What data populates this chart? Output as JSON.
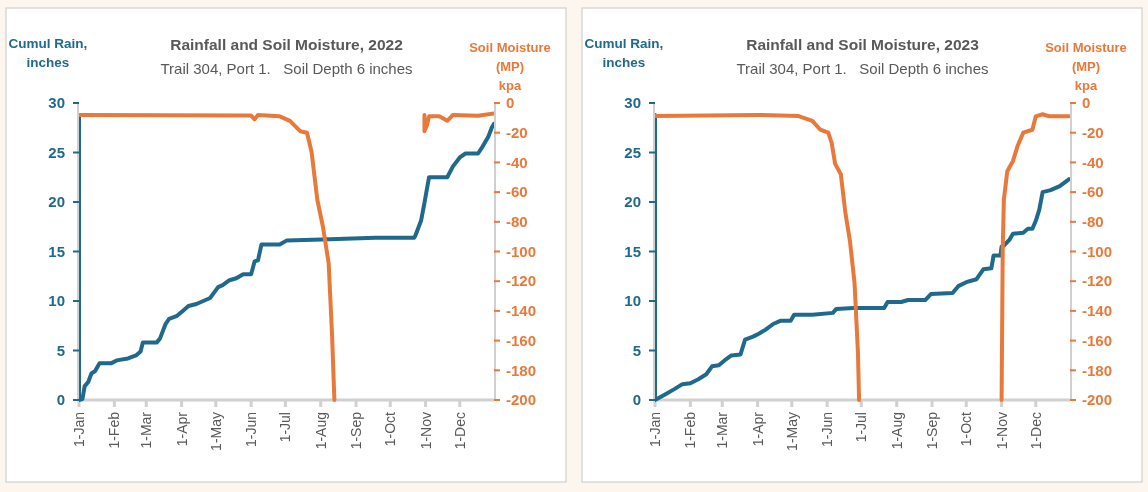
{
  "chart_data": [
    {
      "type": "line",
      "title": "Rainfall and Soil Moisture, 2022",
      "subtitle": "Trail 304, Port 1.   Soil Depth 6 inches",
      "ylabel": "Cumul Rain,\ninches",
      "y2label": "Soil Moisture\n(MP)\nkpa",
      "xlim": [
        "--01-01",
        "--12-31"
      ],
      "xticks": [
        {
          "value": "--01-01",
          "label": "1-Jan"
        },
        {
          "value": "--02-01",
          "label": "1-Feb"
        },
        {
          "value": "--03-01",
          "label": "1-Mar"
        },
        {
          "value": "--04-01",
          "label": "1-Apr"
        },
        {
          "value": "--05-01",
          "label": "1-May"
        },
        {
          "value": "--06-01",
          "label": "1-Jun"
        },
        {
          "value": "--07-01",
          "label": "1-Jul"
        },
        {
          "value": "--08-01",
          "label": "1-Aug"
        },
        {
          "value": "--09-01",
          "label": "1-Sep"
        },
        {
          "value": "--10-01",
          "label": "1-Oct"
        },
        {
          "value": "--11-01",
          "label": "1-Nov"
        },
        {
          "value": "--12-01",
          "label": "1-Dec"
        }
      ],
      "ylim": [
        0,
        30
      ],
      "yticks": [
        0,
        5,
        10,
        15,
        20,
        25,
        30
      ],
      "y2lim": [
        -200,
        0
      ],
      "y2ticks": [
        0,
        -20,
        -40,
        -60,
        -80,
        -100,
        -120,
        -140,
        -160,
        -180,
        -200
      ],
      "series": [
        {
          "color": "#1f6a8c",
          "x": [
            "--01-01",
            "--01-01",
            "--01-04",
            "--01-06",
            "--01-09",
            "--01-12",
            "--01-15",
            "--01-19",
            "--01-29",
            "--02-03",
            "--02-13",
            "--02-20",
            "--02-24",
            "--02-26",
            "--03-10",
            "--03-13",
            "--03-18",
            "--03-21",
            "--03-28",
            "--04-02",
            "--04-07",
            "--04-14",
            "--04-20",
            "--04-26",
            "--05-03",
            "--05-07",
            "--05-13",
            "--05-19",
            "--05-25",
            "--06-01",
            "--06-04",
            "--06-07",
            "--06-10",
            "--06-26",
            "--07-02",
            "--08-02",
            "--09-18",
            "--10-22",
            "--10-23",
            "--10-28",
            "--10-31",
            "--11-04",
            "--11-20",
            "--11-25",
            "--12-01",
            "--12-06",
            "--12-17",
            "--12-21",
            "--12-26",
            "--12-29",
            "--12-31"
          ],
          "values": [
            28.8,
            0,
            0.1,
            1.4,
            1.8,
            2.7,
            2.9,
            3.7,
            3.7,
            4.0,
            4.2,
            4.5,
            4.9,
            5.8,
            5.8,
            6.2,
            7.7,
            8.2,
            8.5,
            9.0,
            9.5,
            9.7,
            10.0,
            10.3,
            11.4,
            11.6,
            12.1,
            12.3,
            12.7,
            12.7,
            14.0,
            14.1,
            15.7,
            15.7,
            16.1,
            16.2,
            16.4,
            16.4,
            16.6,
            18.1,
            19.9,
            22.5,
            22.5,
            23.6,
            24.5,
            24.9,
            24.9,
            25.6,
            26.6,
            27.5,
            27.9
          ]
        },
        {
          "color": "#e8793a",
          "axis": "y2",
          "x": [
            "--01-01",
            "--06-01",
            "--06-04",
            "--06-07",
            "--06-26",
            "--07-05",
            "--07-14",
            "--07-20",
            "--07-24",
            "--07-29",
            "--08-03",
            "--08-08",
            "--08-11",
            "--08-13",
            "--08-14",
            "--10-31",
            "--10-31",
            "--11-02",
            "--11-04",
            "--11-13",
            "--11-20",
            "--11-25",
            "--12-17",
            "--12-31"
          ],
          "values": [
            -8,
            -8.5,
            -11,
            -8,
            -9,
            -12,
            -19,
            -20,
            -33,
            -65,
            -83.5,
            -108,
            -157,
            -200,
            null,
            -8,
            -19,
            -15.5,
            -9,
            -9,
            -12,
            -8,
            -8.6,
            -7
          ]
        }
      ]
    },
    {
      "type": "line",
      "title": "Rainfall and Soil Moisture, 2023",
      "subtitle": "Trail 304, Port 1.   Soil Depth 6 inches",
      "ylabel": "Cumul Rain,\ninches",
      "y2label": "Soil Moisture\n(MP)\nkpa",
      "xlim": [
        "--01-01",
        "--12-31"
      ],
      "xticks": [
        {
          "value": "--01-01",
          "label": "1-Jan"
        },
        {
          "value": "--02-01",
          "label": "1-Feb"
        },
        {
          "value": "--03-01",
          "label": "1-Mar"
        },
        {
          "value": "--04-01",
          "label": "1-Apr"
        },
        {
          "value": "--05-01",
          "label": "1-May"
        },
        {
          "value": "--06-01",
          "label": "1-Jun"
        },
        {
          "value": "--07-01",
          "label": "1-Jul"
        },
        {
          "value": "--08-01",
          "label": "1-Aug"
        },
        {
          "value": "--09-01",
          "label": "1-Sep"
        },
        {
          "value": "--10-01",
          "label": "1-Oct"
        },
        {
          "value": "--11-01",
          "label": "1-Nov"
        },
        {
          "value": "--12-01",
          "label": "1-Dec"
        }
      ],
      "ylim": [
        0,
        30
      ],
      "yticks": [
        0,
        5,
        10,
        15,
        20,
        25,
        30
      ],
      "y2lim": [
        -200,
        0
      ],
      "y2ticks": [
        0,
        -20,
        -40,
        -60,
        -80,
        -100,
        -120,
        -140,
        -160,
        -180,
        -200
      ],
      "series": [
        {
          "color": "#1f6a8c",
          "x": [
            "--01-01",
            "--01-01",
            "--01-09",
            "--01-18",
            "--01-25",
            "--02-01",
            "--02-08",
            "--02-15",
            "--02-20",
            "--02-26",
            "--03-03",
            "--03-09",
            "--03-17",
            "--03-21",
            "--03-28",
            "--04-02",
            "--04-08",
            "--04-15",
            "--04-21",
            "--04-30",
            "--05-03",
            "--05-19",
            "--06-06",
            "--06-09",
            "--06-24",
            "--07-21",
            "--07-24",
            "--08-05",
            "--08-11",
            "--08-26",
            "--08-31",
            "--09-19",
            "--09-24",
            "--10-01",
            "--10-10",
            "--10-16",
            "--10-23",
            "--10-25",
            "--10-31",
            "--11-01",
            "--11-03",
            "--11-08",
            "--11-11",
            "--11-20",
            "--11-24",
            "--11-28",
            "--12-01",
            "--12-04",
            "--12-07",
            "--12-14",
            "--12-22",
            "--12-30"
          ],
          "values": [
            28.8,
            0,
            0.5,
            1.1,
            1.6,
            1.7,
            2.1,
            2.6,
            3.4,
            3.5,
            4.0,
            4.5,
            4.6,
            6.1,
            6.4,
            6.7,
            7.1,
            7.7,
            8.0,
            8.0,
            8.6,
            8.6,
            8.8,
            9.2,
            9.3,
            9.3,
            9.9,
            9.9,
            10.1,
            10.1,
            10.7,
            10.8,
            11.5,
            11.9,
            12.2,
            13.2,
            13.3,
            14.6,
            14.6,
            15.5,
            15.6,
            16.2,
            16.8,
            16.9,
            17.3,
            17.3,
            18.1,
            19.2,
            21.0,
            21.2,
            21.6,
            22.3
          ]
        },
        {
          "color": "#e8793a",
          "axis": "y2",
          "x": [
            "--01-01",
            "--04-01",
            "--05-07",
            "--05-19",
            "--05-26",
            "--06-02",
            "--06-05",
            "--06-08",
            "--06-13",
            "--06-17",
            "--06-21",
            "--06-25",
            "--06-28",
            "--06-29",
            "--06-30",
            "--11-01",
            "--11-02",
            "--11-03",
            "--11-06",
            "--11-11",
            "--11-15",
            "--11-20",
            "--11-28",
            "--12-01",
            "--12-07",
            "--12-13",
            "--12-30"
          ],
          "values": [
            -8.8,
            -8,
            -8.8,
            -12,
            -18,
            -20,
            -27,
            -41,
            -48,
            -74,
            -93,
            -121,
            -168,
            -200,
            null,
            -200,
            -98,
            -65,
            -46,
            -39,
            -29,
            -20,
            -18,
            -9,
            -7.6,
            -9,
            -9
          ]
        }
      ]
    }
  ]
}
